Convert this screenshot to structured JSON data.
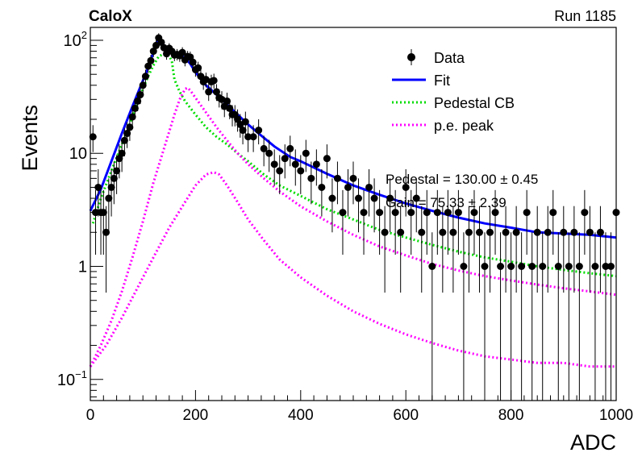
{
  "header": {
    "left_title": "CaloX",
    "right_title": "Run 1185"
  },
  "annotations": {
    "line1": "Pedestal = 130.00 ± 0.45",
    "line2": "Gain = 75.33 ± 2.39"
  },
  "colors": {
    "data": "#000000",
    "fit": "#0000ff",
    "pedestal": "#00dd00",
    "peak": "#ff00ff"
  },
  "chart_data": {
    "type": "scatter",
    "xlabel": "ADC",
    "ylabel": "Events",
    "xlim": [
      0,
      1000
    ],
    "ylim": [
      0.065,
      130
    ],
    "y_scale": "log",
    "x_ticks": [
      {
        "v": 0,
        "label": "0"
      },
      {
        "v": 200,
        "label": "200"
      },
      {
        "v": 400,
        "label": "400"
      },
      {
        "v": 600,
        "label": "600"
      },
      {
        "v": 800,
        "label": "800"
      },
      {
        "v": 1000,
        "label": "1000"
      }
    ],
    "y_ticks": [
      {
        "v": 0.1,
        "base": "10",
        "exp": "−1"
      },
      {
        "v": 1,
        "base": "1",
        "exp": ""
      },
      {
        "v": 10,
        "base": "10",
        "exp": ""
      },
      {
        "v": 100,
        "base": "10",
        "exp": "2"
      }
    ],
    "legend": {
      "position": "top-right",
      "entries": [
        {
          "label": "Data",
          "style": "marker"
        },
        {
          "label": "Fit",
          "style": "solid"
        },
        {
          "label": "Pedestal CB",
          "style": "dotted-green"
        },
        {
          "label": "p.e. peak",
          "style": "dotted-magenta"
        }
      ]
    },
    "series": [
      {
        "name": "Data",
        "kind": "points",
        "points": [
          [
            5,
            14
          ],
          [
            10,
            3
          ],
          [
            15,
            5
          ],
          [
            20,
            3
          ],
          [
            25,
            3
          ],
          [
            30,
            2
          ],
          [
            35,
            4
          ],
          [
            40,
            5
          ],
          [
            45,
            6
          ],
          [
            50,
            7
          ],
          [
            55,
            9
          ],
          [
            60,
            10
          ],
          [
            65,
            13
          ],
          [
            70,
            15
          ],
          [
            75,
            17
          ],
          [
            80,
            21
          ],
          [
            85,
            25
          ],
          [
            90,
            29
          ],
          [
            95,
            33
          ],
          [
            100,
            40
          ],
          [
            105,
            48
          ],
          [
            110,
            59
          ],
          [
            115,
            66
          ],
          [
            120,
            80
          ],
          [
            125,
            90
          ],
          [
            130,
            105
          ],
          [
            135,
            96
          ],
          [
            140,
            86
          ],
          [
            145,
            76
          ],
          [
            150,
            85
          ],
          [
            155,
            80
          ],
          [
            160,
            74
          ],
          [
            165,
            75
          ],
          [
            170,
            73
          ],
          [
            175,
            78
          ],
          [
            180,
            67
          ],
          [
            185,
            72
          ],
          [
            190,
            71
          ],
          [
            195,
            64
          ],
          [
            200,
            55
          ],
          [
            205,
            57
          ],
          [
            210,
            48
          ],
          [
            215,
            43
          ],
          [
            220,
            45
          ],
          [
            225,
            35
          ],
          [
            230,
            43
          ],
          [
            235,
            44
          ],
          [
            240,
            35
          ],
          [
            245,
            31
          ],
          [
            250,
            30
          ],
          [
            255,
            26
          ],
          [
            260,
            29
          ],
          [
            265,
            25
          ],
          [
            270,
            22
          ],
          [
            275,
            22
          ],
          [
            280,
            20
          ],
          [
            285,
            18
          ],
          [
            290,
            16
          ],
          [
            295,
            19
          ],
          [
            300,
            14
          ],
          [
            310,
            14
          ],
          [
            320,
            16
          ],
          [
            330,
            11
          ],
          [
            340,
            10
          ],
          [
            350,
            8
          ],
          [
            360,
            7
          ],
          [
            370,
            9
          ],
          [
            380,
            11
          ],
          [
            390,
            8
          ],
          [
            400,
            7
          ],
          [
            410,
            10
          ],
          [
            420,
            6
          ],
          [
            430,
            8
          ],
          [
            440,
            5
          ],
          [
            450,
            9
          ],
          [
            460,
            4
          ],
          [
            470,
            6
          ],
          [
            480,
            3
          ],
          [
            490,
            5
          ],
          [
            500,
            6
          ],
          [
            510,
            4
          ],
          [
            520,
            3
          ],
          [
            530,
            5
          ],
          [
            540,
            4
          ],
          [
            550,
            3
          ],
          [
            560,
            2
          ],
          [
            570,
            4
          ],
          [
            580,
            3
          ],
          [
            590,
            2
          ],
          [
            600,
            5
          ],
          [
            610,
            3
          ],
          [
            620,
            4
          ],
          [
            630,
            2
          ],
          [
            640,
            3
          ],
          [
            650,
            1
          ],
          [
            660,
            3
          ],
          [
            670,
            2
          ],
          [
            680,
            3
          ],
          [
            690,
            2
          ],
          [
            700,
            3
          ],
          [
            710,
            1
          ],
          [
            720,
            2
          ],
          [
            730,
            3
          ],
          [
            740,
            2
          ],
          [
            750,
            1
          ],
          [
            760,
            2
          ],
          [
            770,
            3
          ],
          [
            780,
            1
          ],
          [
            790,
            2
          ],
          [
            800,
            1
          ],
          [
            810,
            2
          ],
          [
            820,
            1
          ],
          [
            830,
            3
          ],
          [
            840,
            1
          ],
          [
            850,
            2
          ],
          [
            860,
            1
          ],
          [
            870,
            2
          ],
          [
            880,
            3
          ],
          [
            890,
            1
          ],
          [
            900,
            2
          ],
          [
            910,
            1
          ],
          [
            920,
            2
          ],
          [
            930,
            1
          ],
          [
            940,
            3
          ],
          [
            950,
            2
          ],
          [
            960,
            1
          ],
          [
            970,
            2
          ],
          [
            980,
            1
          ],
          [
            990,
            1
          ],
          [
            1000,
            3
          ]
        ]
      },
      {
        "name": "Fit",
        "kind": "line",
        "points": [
          [
            0,
            3.1
          ],
          [
            20,
            4.8
          ],
          [
            40,
            8.5
          ],
          [
            60,
            15
          ],
          [
            80,
            26
          ],
          [
            100,
            44
          ],
          [
            110,
            57
          ],
          [
            120,
            78
          ],
          [
            130,
            105
          ],
          [
            140,
            90
          ],
          [
            150,
            80
          ],
          [
            160,
            76
          ],
          [
            170,
            73
          ],
          [
            180,
            70
          ],
          [
            190,
            62
          ],
          [
            200,
            52
          ],
          [
            220,
            40
          ],
          [
            240,
            33
          ],
          [
            260,
            27
          ],
          [
            280,
            22
          ],
          [
            300,
            18
          ],
          [
            320,
            15
          ],
          [
            350,
            11.5
          ],
          [
            380,
            9.3
          ],
          [
            400,
            8.5
          ],
          [
            450,
            6.6
          ],
          [
            500,
            5.2
          ],
          [
            550,
            4.3
          ],
          [
            600,
            3.6
          ],
          [
            650,
            3.1
          ],
          [
            700,
            2.7
          ],
          [
            750,
            2.4
          ],
          [
            800,
            2.2
          ],
          [
            850,
            2.0
          ],
          [
            900,
            1.95
          ],
          [
            950,
            1.9
          ],
          [
            1000,
            1.8
          ]
        ]
      },
      {
        "name": "Pedestal CB",
        "kind": "dotted",
        "points": [
          [
            5,
            2.4
          ],
          [
            20,
            4.0
          ],
          [
            40,
            7.0
          ],
          [
            60,
            12
          ],
          [
            80,
            21
          ],
          [
            100,
            37
          ],
          [
            110,
            48
          ],
          [
            120,
            60
          ],
          [
            130,
            72
          ],
          [
            140,
            76
          ],
          [
            150,
            73
          ],
          [
            155,
            65
          ],
          [
            160,
            45
          ],
          [
            170,
            35
          ],
          [
            180,
            29
          ],
          [
            200,
            22
          ],
          [
            220,
            17
          ],
          [
            240,
            14
          ],
          [
            260,
            12
          ],
          [
            280,
            10
          ],
          [
            300,
            8.5
          ],
          [
            330,
            6.5
          ],
          [
            360,
            5.2
          ],
          [
            400,
            4.2
          ],
          [
            450,
            3.2
          ],
          [
            500,
            2.6
          ],
          [
            550,
            2.1
          ],
          [
            600,
            1.8
          ],
          [
            650,
            1.55
          ],
          [
            700,
            1.35
          ],
          [
            750,
            1.2
          ],
          [
            800,
            1.1
          ],
          [
            850,
            1.0
          ],
          [
            900,
            0.93
          ],
          [
            950,
            0.87
          ],
          [
            1000,
            0.82
          ]
        ]
      },
      {
        "name": "p.e. peak",
        "kind": "dotted",
        "points": [
          [
            0,
            0.13
          ],
          [
            20,
            0.2
          ],
          [
            40,
            0.33
          ],
          [
            60,
            0.6
          ],
          [
            80,
            1.2
          ],
          [
            100,
            2.5
          ],
          [
            120,
            5.5
          ],
          [
            140,
            11
          ],
          [
            160,
            22
          ],
          [
            170,
            30
          ],
          [
            180,
            37
          ],
          [
            185,
            38
          ],
          [
            190,
            36
          ],
          [
            200,
            31
          ],
          [
            220,
            23
          ],
          [
            240,
            17
          ],
          [
            260,
            13
          ],
          [
            280,
            10
          ],
          [
            300,
            8
          ],
          [
            330,
            6
          ],
          [
            360,
            4.6
          ],
          [
            400,
            3.4
          ],
          [
            450,
            2.5
          ],
          [
            500,
            1.9
          ],
          [
            550,
            1.5
          ],
          [
            600,
            1.25
          ],
          [
            650,
            1.05
          ],
          [
            700,
            0.92
          ],
          [
            750,
            0.82
          ],
          [
            800,
            0.75
          ],
          [
            850,
            0.69
          ],
          [
            900,
            0.64
          ],
          [
            950,
            0.6
          ],
          [
            1000,
            0.56
          ]
        ]
      },
      {
        "name": "p.e. peak",
        "kind": "dotted",
        "points": [
          [
            0,
            0.13
          ],
          [
            30,
            0.2
          ],
          [
            60,
            0.35
          ],
          [
            90,
            0.65
          ],
          [
            120,
            1.2
          ],
          [
            150,
            2.2
          ],
          [
            180,
            3.7
          ],
          [
            200,
            5.2
          ],
          [
            220,
            6.5
          ],
          [
            235,
            6.8
          ],
          [
            245,
            6.5
          ],
          [
            260,
            5.2
          ],
          [
            280,
            3.7
          ],
          [
            300,
            2.6
          ],
          [
            330,
            1.7
          ],
          [
            360,
            1.15
          ],
          [
            400,
            0.8
          ],
          [
            450,
            0.55
          ],
          [
            500,
            0.4
          ],
          [
            550,
            0.31
          ],
          [
            600,
            0.25
          ],
          [
            650,
            0.21
          ],
          [
            700,
            0.18
          ],
          [
            750,
            0.16
          ],
          [
            800,
            0.15
          ],
          [
            850,
            0.14
          ],
          [
            900,
            0.14
          ],
          [
            950,
            0.13
          ],
          [
            1000,
            0.13
          ]
        ]
      }
    ]
  }
}
